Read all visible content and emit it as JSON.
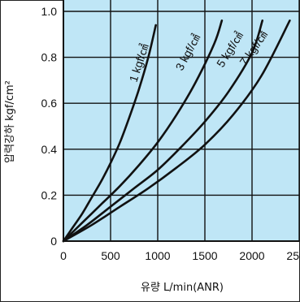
{
  "chart_data": {
    "type": "line",
    "title": "",
    "xlabel": "유량 L/min(ANR)",
    "ylabel": "압력강하 kgf/cm²",
    "xlim": [
      0,
      2500
    ],
    "ylim": [
      0,
      1.0
    ],
    "x_ticks": [
      "0",
      "500",
      "1000",
      "1500",
      "2000",
      "2500"
    ],
    "y_ticks": [
      "0",
      "0.2",
      "0.4",
      "0.6",
      "0.8",
      "1.0"
    ],
    "grid": true,
    "legend": "none",
    "colors": {
      "plot_bg": "#bfe6f6",
      "grid": "#111111",
      "curve": "#111111"
    },
    "series": [
      {
        "name": "1 kgf/㎠",
        "x": [
          0,
          100,
          200,
          300,
          400,
          500,
          600,
          700,
          800,
          900,
          980
        ],
        "y": [
          0,
          0.06,
          0.12,
          0.19,
          0.26,
          0.34,
          0.43,
          0.54,
          0.66,
          0.8,
          0.94
        ]
      },
      {
        "name": "3 kgf/㎠",
        "x": [
          0,
          200,
          400,
          600,
          800,
          1000,
          1200,
          1400,
          1600,
          1680
        ],
        "y": [
          0,
          0.08,
          0.16,
          0.24,
          0.33,
          0.43,
          0.55,
          0.69,
          0.86,
          0.96
        ]
      },
      {
        "name": "5 kgf/㎠",
        "x": [
          0,
          250,
          500,
          750,
          1000,
          1250,
          1500,
          1750,
          2000,
          2110
        ],
        "y": [
          0,
          0.07,
          0.15,
          0.23,
          0.31,
          0.41,
          0.52,
          0.65,
          0.82,
          0.96
        ]
      },
      {
        "name": "7 kgf/㎠",
        "x": [
          0,
          300,
          600,
          900,
          1200,
          1500,
          1800,
          2100,
          2400
        ],
        "y": [
          0,
          0.07,
          0.15,
          0.23,
          0.32,
          0.42,
          0.55,
          0.72,
          0.96
        ]
      }
    ]
  }
}
